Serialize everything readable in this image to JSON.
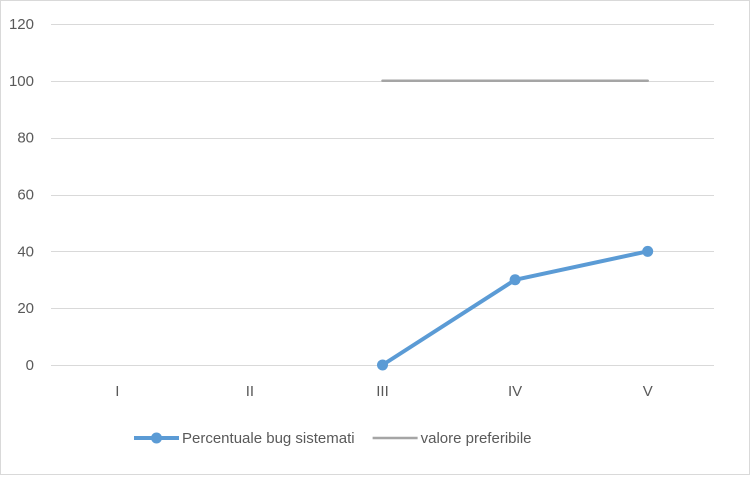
{
  "chart_data": {
    "type": "line",
    "categories": [
      "I",
      "II",
      "III",
      "IV",
      "V"
    ],
    "ylim": [
      0,
      120
    ],
    "yticks": [
      0,
      20,
      40,
      60,
      80,
      100,
      120
    ],
    "grid": true,
    "legend_position": "bottom",
    "series": [
      {
        "name": "Percentuale bug sistemati",
        "values": [
          null,
          null,
          0,
          30,
          40
        ],
        "color": "#5b9bd5",
        "markers": true
      },
      {
        "name": "valore preferibile",
        "values": [
          null,
          null,
          100,
          100,
          100
        ],
        "color": "#a5a5a5",
        "markers": false
      }
    ]
  }
}
